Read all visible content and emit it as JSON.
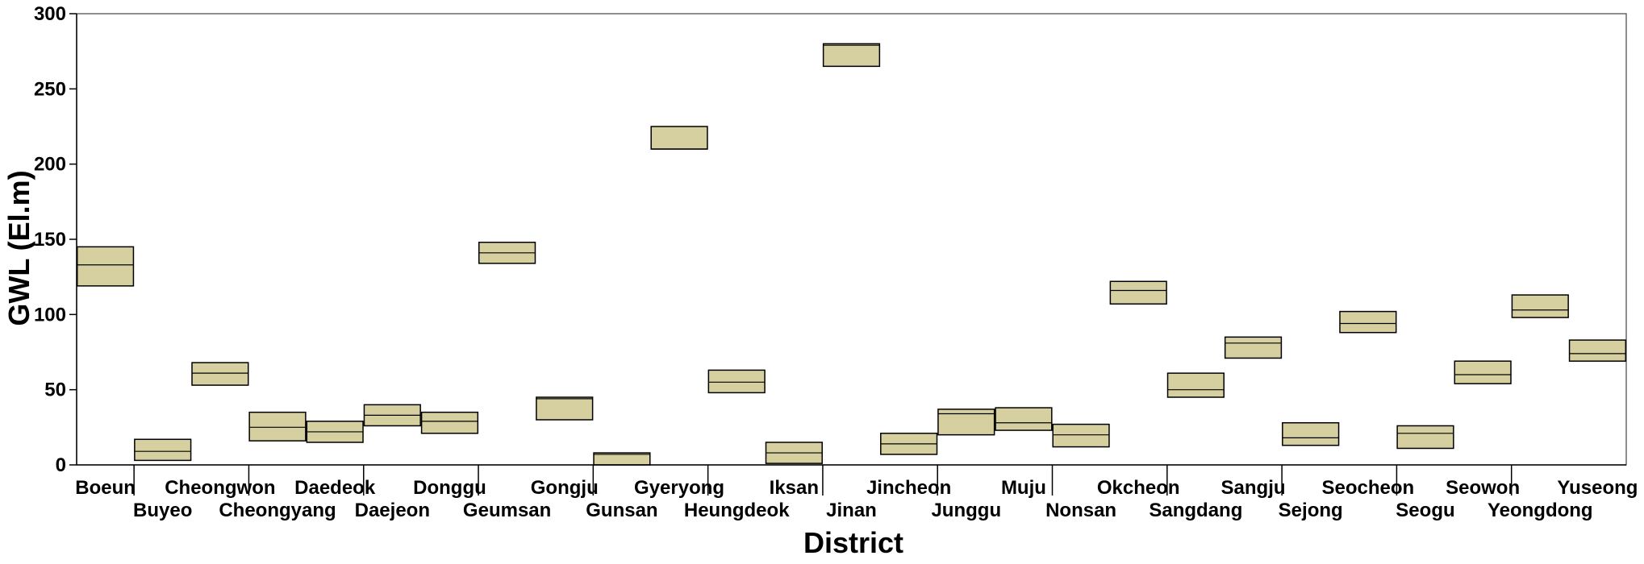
{
  "chart_data": {
    "type": "boxplot",
    "xlabel": "District",
    "ylabel": "GWL (El.m)",
    "ylim": [
      0,
      300
    ],
    "yticks": [
      0,
      50,
      100,
      150,
      200,
      250,
      300
    ],
    "grid": false,
    "box_color": "#d6cfa0",
    "categories": [
      "Boeun",
      "Buyeo",
      "Cheongwon",
      "Cheongyang",
      "Daedeok",
      "Daejeon",
      "Donggu",
      "Geumsan",
      "Gongju",
      "Gunsan",
      "Gyeryong",
      "Heungdeok",
      "Iksan",
      "Jinan",
      "Jincheon",
      "Junggu",
      "Muju",
      "Nonsan",
      "Okcheon",
      "Sangdang",
      "Sangju",
      "Sejong",
      "Seocheon",
      "Seogu",
      "Seowon",
      "Yeongdong",
      "Yuseong"
    ],
    "boxes": [
      {
        "q1": 119,
        "median": 133,
        "q3": 145
      },
      {
        "q1": 3,
        "median": 9,
        "q3": 17
      },
      {
        "q1": 53,
        "median": 61,
        "q3": 68
      },
      {
        "q1": 16,
        "median": 25,
        "q3": 35
      },
      {
        "q1": 15,
        "median": 22,
        "q3": 29
      },
      {
        "q1": 26,
        "median": 33,
        "q3": 40
      },
      {
        "q1": 21,
        "median": 29,
        "q3": 35
      },
      {
        "q1": 134,
        "median": 141,
        "q3": 148
      },
      {
        "q1": 30,
        "median": 44,
        "q3": 45
      },
      {
        "q1": 0,
        "median": 7,
        "q3": 8
      },
      {
        "q1": 210,
        "median": 210,
        "q3": 225
      },
      {
        "q1": 48,
        "median": 55,
        "q3": 63
      },
      {
        "q1": 1,
        "median": 8,
        "q3": 15
      },
      {
        "q1": 265,
        "median": 279,
        "q3": 280
      },
      {
        "q1": 7,
        "median": 14,
        "q3": 21
      },
      {
        "q1": 20,
        "median": 34,
        "q3": 37
      },
      {
        "q1": 23,
        "median": 28,
        "q3": 38
      },
      {
        "q1": 12,
        "median": 20,
        "q3": 27
      },
      {
        "q1": 107,
        "median": 116,
        "q3": 122
      },
      {
        "q1": 45,
        "median": 50,
        "q3": 61
      },
      {
        "q1": 71,
        "median": 81,
        "q3": 85
      },
      {
        "q1": 13,
        "median": 18,
        "q3": 28
      },
      {
        "q1": 88,
        "median": 94,
        "q3": 102
      },
      {
        "q1": 11,
        "median": 21,
        "q3": 26
      },
      {
        "q1": 54,
        "median": 60,
        "q3": 69
      },
      {
        "q1": 98,
        "median": 103,
        "q3": 113
      },
      {
        "q1": 69,
        "median": 74,
        "q3": 83
      }
    ]
  }
}
